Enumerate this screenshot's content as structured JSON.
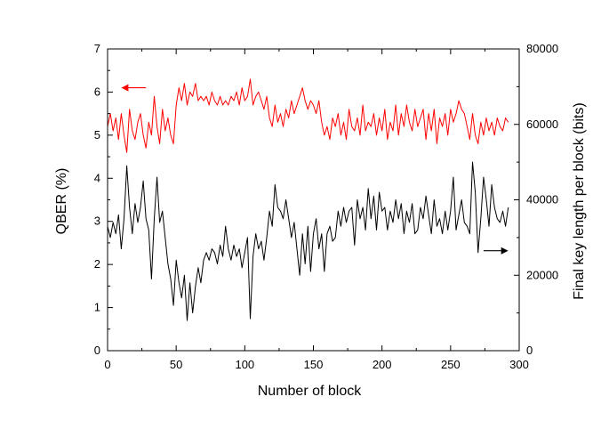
{
  "chart_data": {
    "type": "line",
    "title": "",
    "xlabel": "Number of block",
    "ylabel_left": "QBER (%)",
    "ylabel_right": "Final key length per block (bits)",
    "xlim": [
      0,
      300
    ],
    "ylim_left": [
      0,
      7
    ],
    "ylim_right": [
      0,
      80000
    ],
    "xticks": [
      "0",
      "50",
      "100",
      "150",
      "200",
      "250",
      "300"
    ],
    "yticks_left": [
      "0",
      "1",
      "2",
      "3",
      "4",
      "5",
      "6",
      "7"
    ],
    "yticks_right": [
      "0",
      "20000",
      "40000",
      "60000",
      "80000"
    ],
    "grid": false,
    "series": [
      {
        "color": "#ff0000",
        "axis": "left",
        "arrow": "left",
        "x": [
          0,
          2,
          4,
          6,
          8,
          10,
          12,
          14,
          16,
          18,
          20,
          22,
          24,
          26,
          28,
          30,
          32,
          34,
          36,
          38,
          40,
          42,
          44,
          46,
          48,
          50,
          52,
          54,
          56,
          58,
          60,
          62,
          64,
          66,
          68,
          70,
          72,
          74,
          76,
          78,
          80,
          82,
          84,
          86,
          88,
          90,
          92,
          94,
          96,
          98,
          100,
          102,
          104,
          106,
          108,
          110,
          112,
          114,
          116,
          118,
          120,
          122,
          124,
          126,
          128,
          130,
          132,
          134,
          136,
          138,
          140,
          142,
          144,
          146,
          148,
          150,
          152,
          154,
          156,
          158,
          160,
          162,
          164,
          166,
          168,
          170,
          172,
          174,
          176,
          178,
          180,
          182,
          184,
          186,
          188,
          190,
          192,
          194,
          196,
          198,
          200,
          202,
          204,
          206,
          208,
          210,
          212,
          214,
          216,
          218,
          220,
          222,
          224,
          226,
          228,
          230,
          232,
          234,
          236,
          238,
          240,
          242,
          244,
          246,
          248,
          250,
          252,
          254,
          256,
          258,
          260,
          262,
          264,
          266,
          268,
          270,
          272,
          274,
          276,
          278,
          280,
          282,
          284,
          286,
          288,
          290,
          292
        ],
        "y": [
          5.2,
          5.5,
          5.1,
          5.4,
          4.9,
          5.5,
          5.0,
          4.6,
          5.6,
          5.1,
          4.9,
          5.3,
          5.5,
          5.0,
          4.7,
          5.3,
          5.0,
          5.9,
          5.2,
          4.8,
          5.6,
          5.1,
          5.4,
          5.0,
          4.8,
          5.7,
          6.1,
          5.8,
          6.2,
          5.7,
          6.0,
          5.9,
          6.2,
          5.8,
          5.9,
          5.8,
          5.9,
          5.7,
          6.0,
          5.8,
          5.7,
          5.9,
          5.7,
          5.8,
          5.7,
          5.9,
          5.8,
          6.0,
          5.7,
          6.1,
          5.8,
          5.9,
          6.3,
          5.7,
          5.9,
          6.0,
          5.8,
          5.6,
          5.9,
          5.4,
          5.2,
          5.7,
          5.3,
          5.5,
          5.2,
          5.6,
          5.4,
          5.8,
          5.5,
          5.7,
          5.9,
          6.1,
          5.8,
          5.6,
          5.8,
          5.7,
          5.5,
          5.8,
          5.3,
          5.0,
          5.2,
          4.9,
          5.4,
          5.2,
          5.5,
          5.0,
          5.3,
          4.9,
          5.6,
          5.2,
          5.1,
          5.4,
          5.0,
          5.7,
          5.1,
          5.3,
          5.2,
          5.5,
          5.0,
          5.4,
          5.1,
          5.6,
          4.9,
          5.3,
          5.1,
          5.7,
          5.0,
          5.5,
          5.2,
          5.7,
          5.3,
          5.1,
          5.6,
          5.2,
          5.4,
          5.6,
          4.9,
          5.5,
          5.1,
          5.6,
          4.8,
          5.4,
          5.2,
          5.5,
          5.0,
          5.6,
          5.3,
          5.5,
          5.8,
          5.6,
          5.5,
          5.2,
          4.9,
          5.5,
          5.0,
          4.8,
          5.3,
          5.0,
          5.4,
          5.1,
          5.3,
          5.0,
          5.4,
          5.2,
          5.1,
          5.4,
          5.3
        ]
      },
      {
        "color": "#000000",
        "axis": "right",
        "arrow": "right",
        "x": [
          0,
          2,
          4,
          6,
          8,
          10,
          12,
          14,
          16,
          18,
          20,
          22,
          24,
          26,
          28,
          30,
          32,
          34,
          36,
          38,
          40,
          42,
          44,
          46,
          48,
          50,
          52,
          54,
          56,
          58,
          60,
          62,
          64,
          66,
          68,
          70,
          72,
          74,
          76,
          78,
          80,
          82,
          84,
          86,
          88,
          90,
          92,
          94,
          96,
          98,
          100,
          102,
          104,
          106,
          108,
          110,
          112,
          114,
          116,
          118,
          120,
          122,
          124,
          126,
          128,
          130,
          132,
          134,
          136,
          138,
          140,
          142,
          144,
          146,
          148,
          150,
          152,
          154,
          156,
          158,
          160,
          162,
          164,
          166,
          168,
          170,
          172,
          174,
          176,
          178,
          180,
          182,
          184,
          186,
          188,
          190,
          192,
          194,
          196,
          198,
          200,
          202,
          204,
          206,
          208,
          210,
          212,
          214,
          216,
          218,
          220,
          222,
          224,
          226,
          228,
          230,
          232,
          234,
          236,
          238,
          240,
          242,
          244,
          246,
          248,
          250,
          252,
          254,
          256,
          258,
          260,
          262,
          264,
          266,
          268,
          270,
          272,
          274,
          276,
          278,
          280,
          282,
          284,
          286,
          288,
          290,
          292
        ],
        "y": [
          33000,
          30000,
          34000,
          31000,
          36000,
          27000,
          35000,
          49000,
          38000,
          31000,
          39000,
          34000,
          38000,
          45000,
          35000,
          32000,
          19000,
          35000,
          46000,
          34000,
          37000,
          30000,
          23000,
          19000,
          12000,
          24000,
          18000,
          14000,
          20000,
          8000,
          18000,
          10000,
          17000,
          22000,
          18000,
          24000,
          26000,
          24000,
          27000,
          26000,
          23000,
          28000,
          25000,
          33000,
          27000,
          24000,
          28000,
          25000,
          27000,
          22000,
          26000,
          30000,
          8500,
          25000,
          31000,
          27000,
          29000,
          24000,
          30000,
          37000,
          33000,
          44000,
          38000,
          37000,
          35000,
          40000,
          35000,
          30000,
          34000,
          27000,
          20000,
          31000,
          23000,
          33000,
          21000,
          31000,
          35000,
          27000,
          31000,
          21000,
          31000,
          33000,
          29000,
          30000,
          37000,
          33000,
          38000,
          34000,
          37000,
          38000,
          28000,
          40000,
          35000,
          38000,
          32000,
          43000,
          35000,
          41000,
          32000,
          42000,
          37000,
          38000,
          32000,
          37000,
          34000,
          40000,
          35000,
          39000,
          31000,
          37000,
          34000,
          39000,
          31000,
          32000,
          38000,
          35000,
          41000,
          36000,
          31000,
          40000,
          33000,
          35000,
          31000,
          37000,
          32000,
          37000,
          46000,
          32000,
          36000,
          40000,
          34000,
          33000,
          31000,
          50000,
          42000,
          26000,
          35000,
          46000,
          40000,
          33000,
          44000,
          38000,
          35000,
          34000,
          37000,
          33000,
          38000
        ]
      }
    ]
  }
}
